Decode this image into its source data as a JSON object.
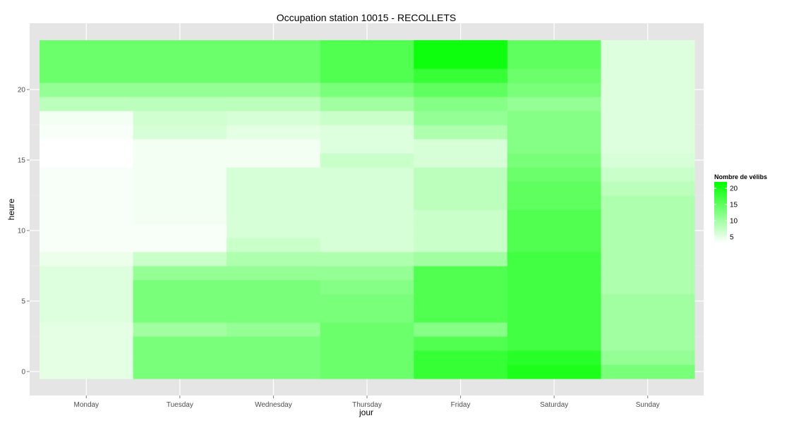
{
  "chart_data": {
    "type": "heatmap",
    "title": "Occupation station 10015 - RECOLLETS",
    "xlabel": "jour",
    "ylabel": "heure",
    "categories": [
      "Monday",
      "Tuesday",
      "Wednesday",
      "Thursday",
      "Friday",
      "Saturday",
      "Sunday"
    ],
    "hours": [
      0,
      1,
      2,
      3,
      4,
      5,
      6,
      7,
      8,
      9,
      10,
      11,
      12,
      13,
      14,
      15,
      16,
      17,
      18,
      19,
      20,
      21,
      22,
      23
    ],
    "yticks": [
      0,
      5,
      10,
      15,
      20
    ],
    "ylim": [
      -0.5,
      23.5
    ],
    "legend": {
      "title": "Nombre de vélibs",
      "ticks": [
        5,
        10,
        15,
        20
      ],
      "range": [
        3,
        22
      ],
      "low_color": "#ffffff",
      "high_color": "#00ff00",
      "placement": "right"
    },
    "grid": true,
    "values": {
      "Monday": [
        5,
        5,
        5,
        5,
        5.5,
        5.5,
        5.5,
        5.5,
        4.5,
        3.5,
        3.5,
        3.5,
        3.5,
        3.5,
        3.5,
        3,
        3,
        3.5,
        4,
        8,
        11,
        14,
        14,
        14
      ],
      "Tuesday": [
        13,
        13,
        13,
        10,
        13,
        13,
        13,
        11,
        7,
        3.5,
        3.5,
        4,
        4,
        4,
        4,
        4,
        4,
        6,
        6.5,
        8,
        11,
        14,
        14,
        14
      ],
      "Wednesday": [
        13,
        13,
        13,
        11,
        13,
        13,
        13,
        11,
        9,
        7,
        6,
        6,
        6,
        6,
        6,
        4,
        4,
        5,
        6,
        8,
        11,
        14,
        14,
        14
      ],
      "Thursday": [
        14,
        14,
        14,
        14,
        13,
        13,
        12,
        11,
        9,
        6,
        6,
        6,
        6,
        6,
        6,
        7,
        5.5,
        5.5,
        7,
        10,
        13,
        16,
        16,
        16
      ],
      "Friday": [
        18,
        18,
        16,
        12,
        16,
        16,
        16,
        16,
        10,
        7,
        7,
        7,
        8,
        8,
        8,
        6,
        6,
        9,
        11,
        12,
        15,
        18,
        21,
        21
      ],
      "Saturday": [
        20,
        19,
        17,
        17,
        17,
        17,
        17,
        17,
        17,
        16,
        16,
        16,
        15,
        15,
        14,
        13,
        12,
        12,
        12,
        11,
        13,
        14,
        15,
        15
      ],
      "Sunday": [
        13,
        11,
        10,
        10,
        10,
        10,
        9,
        9,
        9,
        9,
        9,
        9,
        9,
        8,
        7,
        6,
        5.5,
        5.5,
        5.5,
        5.5,
        5.5,
        5.5,
        5.5,
        5.5
      ]
    }
  }
}
